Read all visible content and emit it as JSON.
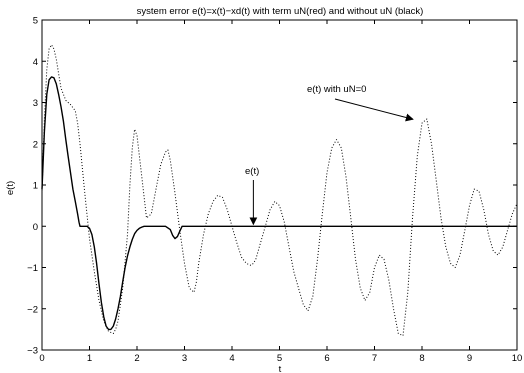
{
  "chart_data": {
    "type": "line",
    "title": "system error e(t)=x(t)−xd(t) with term uN(red) and without uN (black)",
    "xlabel": "t",
    "ylabel": "e(t)",
    "xlim": [
      0,
      10
    ],
    "ylim": [
      -3,
      5
    ],
    "xticks": [
      0,
      1,
      2,
      3,
      4,
      5,
      6,
      7,
      8,
      9,
      10
    ],
    "yticks": [
      -3,
      -2,
      -1,
      0,
      1,
      2,
      3,
      4,
      5
    ],
    "xtick_labels": [
      "0",
      "1",
      "2",
      "3",
      "4",
      "5",
      "6",
      "7",
      "8",
      "9",
      "10"
    ],
    "ytick_labels": [
      "−3",
      "−2",
      "−1",
      "0",
      "1",
      "2",
      "3",
      "4",
      "5"
    ],
    "grid": false,
    "series": [
      {
        "style": "solid",
        "color": "#000000",
        "x": [
          0,
          0.05,
          0.1,
          0.15,
          0.2,
          0.25,
          0.3,
          0.35,
          0.4,
          0.45,
          0.5,
          0.55,
          0.6,
          0.65,
          0.7,
          0.75,
          0.78,
          0.8,
          0.9,
          0.95,
          1.0,
          1.05,
          1.1,
          1.15,
          1.2,
          1.25,
          1.3,
          1.35,
          1.4,
          1.45,
          1.5,
          1.55,
          1.6,
          1.65,
          1.7,
          1.75,
          1.8,
          1.85,
          1.9,
          1.95,
          2.0,
          2.05,
          2.1,
          2.15,
          2.2,
          2.25,
          2.3,
          2.35,
          2.4,
          2.5,
          2.6,
          2.7,
          2.75,
          2.8,
          2.85,
          2.9,
          2.95,
          3.0,
          3.1,
          3.5,
          4.0,
          4.5,
          5.0,
          5.5,
          6.0,
          6.5,
          7.0,
          7.5,
          8.0,
          8.5,
          9.0,
          9.5,
          10.0
        ],
        "y": [
          0.9,
          2.3,
          3.2,
          3.55,
          3.62,
          3.6,
          3.45,
          3.2,
          2.9,
          2.55,
          2.1,
          1.7,
          1.3,
          0.9,
          0.6,
          0.3,
          0.1,
          0.0,
          0.0,
          0.0,
          -0.05,
          -0.2,
          -0.5,
          -0.9,
          -1.4,
          -1.85,
          -2.2,
          -2.42,
          -2.5,
          -2.5,
          -2.42,
          -2.25,
          -2.0,
          -1.7,
          -1.35,
          -1.0,
          -0.72,
          -0.5,
          -0.32,
          -0.18,
          -0.1,
          -0.05,
          -0.02,
          0.0,
          0.0,
          0.0,
          0.0,
          0.0,
          0.0,
          0.0,
          0.0,
          -0.08,
          -0.22,
          -0.3,
          -0.25,
          -0.12,
          0.0,
          0.0,
          0.0,
          0.0,
          0.0,
          0.0,
          0.0,
          0.0,
          0.0,
          0.0,
          0.0,
          0.0,
          0.0,
          0.0,
          0.0,
          0.0,
          0.0
        ]
      },
      {
        "style": "dotted",
        "color": "#000000",
        "x": [
          0,
          0.05,
          0.1,
          0.15,
          0.2,
          0.25,
          0.3,
          0.35,
          0.4,
          0.5,
          0.6,
          0.7,
          0.75,
          0.8,
          0.9,
          1.0,
          1.05,
          1.1,
          1.2,
          1.3,
          1.4,
          1.5,
          1.55,
          1.6,
          1.7,
          1.8,
          1.85,
          1.9,
          1.95,
          2.0,
          2.1,
          2.2,
          2.3,
          2.4,
          2.5,
          2.6,
          2.65,
          2.7,
          2.8,
          2.9,
          3.0,
          3.1,
          3.2,
          3.25,
          3.3,
          3.4,
          3.5,
          3.6,
          3.7,
          3.8,
          3.9,
          4.0,
          4.1,
          4.2,
          4.3,
          4.4,
          4.45,
          4.5,
          4.6,
          4.7,
          4.8,
          4.9,
          5.0,
          5.1,
          5.2,
          5.3,
          5.4,
          5.5,
          5.6,
          5.7,
          5.8,
          5.9,
          6.0,
          6.1,
          6.2,
          6.3,
          6.4,
          6.5,
          6.6,
          6.7,
          6.8,
          6.9,
          7.0,
          7.1,
          7.2,
          7.3,
          7.4,
          7.5,
          7.6,
          7.7,
          7.8,
          7.9,
          8.0,
          8.1,
          8.2,
          8.3,
          8.4,
          8.5,
          8.6,
          8.7,
          8.8,
          8.9,
          9.0,
          9.1,
          9.2,
          9.3,
          9.4,
          9.5,
          9.6,
          9.7,
          9.8,
          9.9,
          10.0
        ],
        "y": [
          0.8,
          2.6,
          3.8,
          4.3,
          4.4,
          4.3,
          4.05,
          3.7,
          3.35,
          3.05,
          2.95,
          2.8,
          2.5,
          2.0,
          0.8,
          -0.3,
          -0.7,
          -1.1,
          -1.8,
          -2.3,
          -2.55,
          -2.6,
          -2.5,
          -2.3,
          -1.5,
          -0.2,
          1.0,
          1.9,
          2.35,
          2.2,
          1.2,
          0.2,
          0.3,
          0.9,
          1.5,
          1.8,
          1.85,
          1.6,
          0.8,
          -0.1,
          -0.9,
          -1.5,
          -1.6,
          -1.35,
          -0.9,
          -0.2,
          0.3,
          0.6,
          0.75,
          0.7,
          0.4,
          0.0,
          -0.4,
          -0.75,
          -0.9,
          -0.95,
          -0.9,
          -0.8,
          -0.4,
          0.0,
          0.4,
          0.6,
          0.5,
          0.1,
          -0.5,
          -1.1,
          -1.5,
          -1.9,
          -2.05,
          -1.7,
          -0.8,
          0.3,
          1.3,
          1.9,
          2.1,
          1.9,
          1.2,
          0.2,
          -0.8,
          -1.5,
          -1.8,
          -1.6,
          -1.0,
          -0.7,
          -0.8,
          -1.3,
          -2.0,
          -2.6,
          -2.65,
          -1.6,
          0.2,
          1.7,
          2.5,
          2.6,
          2.0,
          1.1,
          0.2,
          -0.5,
          -0.9,
          -1.0,
          -0.7,
          -0.1,
          0.5,
          0.9,
          0.85,
          0.4,
          -0.2,
          -0.6,
          -0.7,
          -0.5,
          -0.1,
          0.3,
          0.55
        ]
      }
    ],
    "annotations": [
      {
        "text": "e(t) with uN=0",
        "arrow_to": [
          7.85,
          2.4
        ]
      },
      {
        "text": "e(t)",
        "arrow_to": [
          4.45,
          0.0
        ]
      }
    ]
  }
}
